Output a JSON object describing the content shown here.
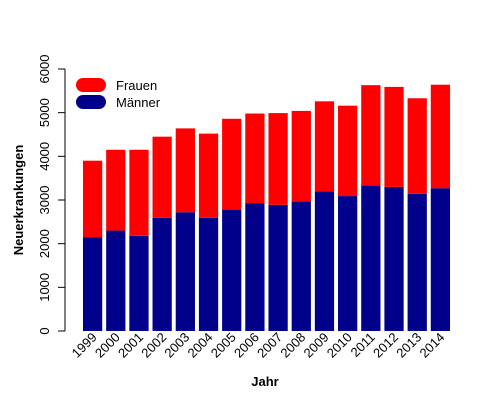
{
  "chart_data": {
    "type": "bar",
    "stacked": true,
    "title": "",
    "xlabel": "Jahr",
    "ylabel": "Neuerkrankungen",
    "ylim": [
      0,
      6000
    ],
    "yticks": [
      0,
      1000,
      2000,
      3000,
      4000,
      5000,
      6000
    ],
    "grid": false,
    "legend_position": "top-left",
    "categories": [
      "1999",
      "2000",
      "2001",
      "2002",
      "2003",
      "2004",
      "2005",
      "2006",
      "2007",
      "2008",
      "2009",
      "2010",
      "2011",
      "2012",
      "2013",
      "2014"
    ],
    "series": [
      {
        "name": "Männer",
        "color": "#00008B",
        "values": [
          2150,
          2300,
          2180,
          2590,
          2720,
          2590,
          2780,
          2930,
          2890,
          2970,
          3200,
          3090,
          3330,
          3300,
          3140,
          3270
        ]
      },
      {
        "name": "Frauen",
        "color": "#FF0000",
        "values": [
          1750,
          1850,
          1970,
          1860,
          1920,
          1930,
          2080,
          2050,
          2100,
          2070,
          2060,
          2070,
          2300,
          2290,
          2190,
          2370
        ]
      }
    ],
    "legend": [
      {
        "name": "Frauen",
        "color": "#FF0000"
      },
      {
        "name": "Männer",
        "color": "#00008B"
      }
    ]
  }
}
